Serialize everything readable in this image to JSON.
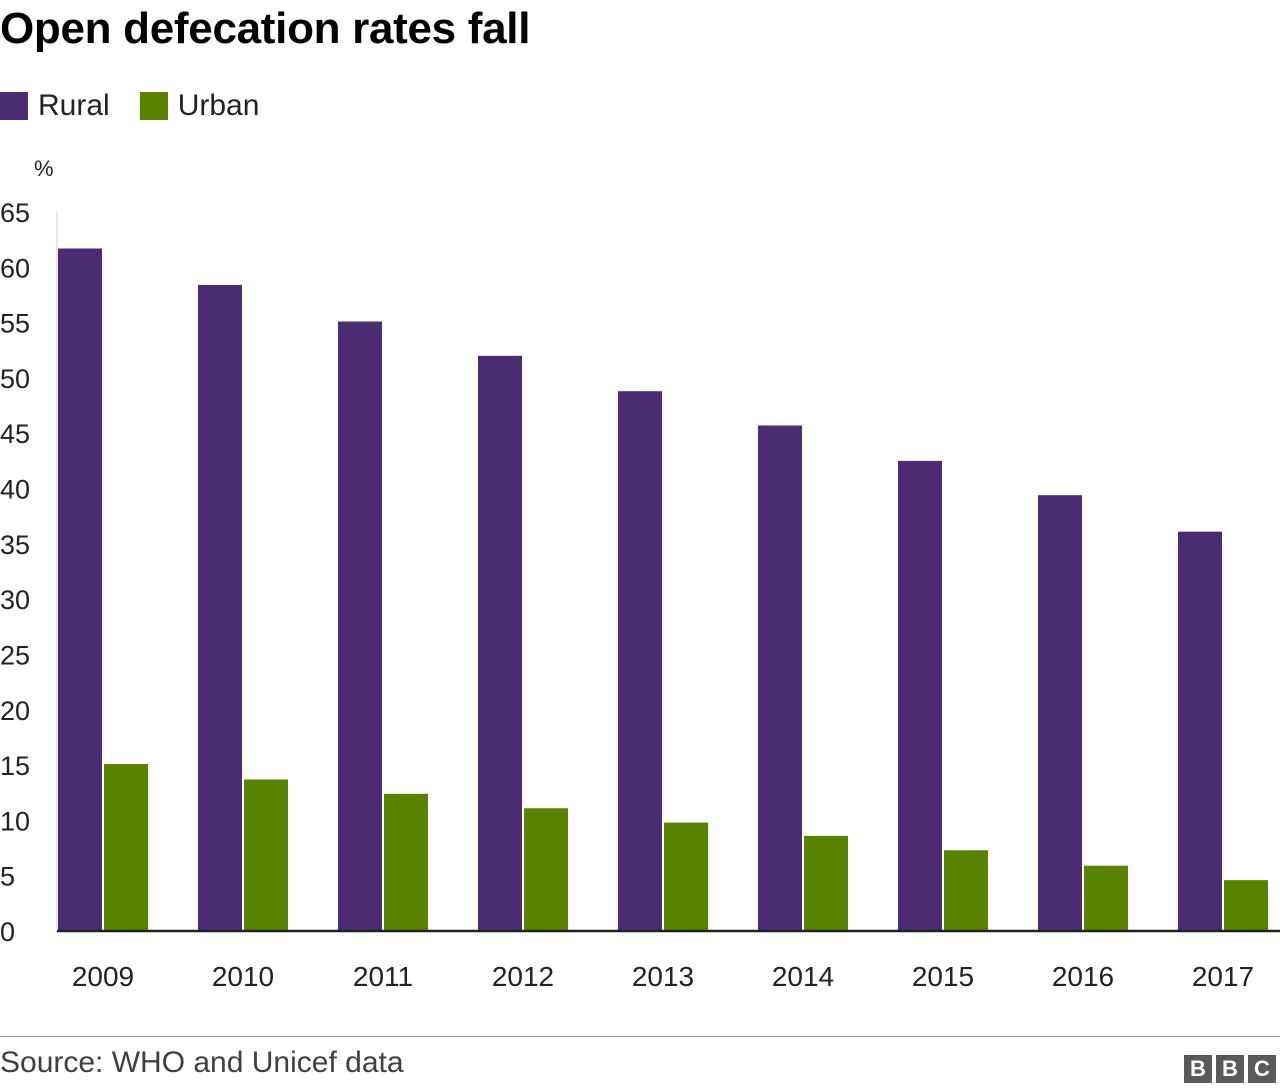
{
  "title": "Open defecation rates fall",
  "legend": [
    {
      "name": "Rural",
      "color": "#4b2c72"
    },
    {
      "name": "Urban",
      "color": "#588300"
    }
  ],
  "source": "Source: WHO and Unicef data",
  "logo_letters": [
    "B",
    "B",
    "C"
  ],
  "chart_data": {
    "type": "bar",
    "title": "Open defecation rates fall",
    "ylabel": "%",
    "xlabel": "",
    "categories": [
      "2009",
      "2010",
      "2011",
      "2012",
      "2013",
      "2014",
      "2015",
      "2016",
      "2017"
    ],
    "series": [
      {
        "name": "Rural",
        "color": "#4b2c72",
        "values": [
          61.7,
          58.4,
          55.1,
          52.0,
          48.8,
          45.7,
          42.5,
          39.4,
          36.1
        ]
      },
      {
        "name": "Urban",
        "color": "#588300",
        "values": [
          15.1,
          13.7,
          12.4,
          11.1,
          9.8,
          8.6,
          7.3,
          5.9,
          4.6
        ]
      }
    ],
    "ylim": [
      0,
      65
    ],
    "yticks": [
      0,
      5,
      10,
      15,
      20,
      25,
      30,
      35,
      40,
      45,
      50,
      55,
      60,
      65
    ],
    "grid": false,
    "legend_position": "top-left"
  }
}
